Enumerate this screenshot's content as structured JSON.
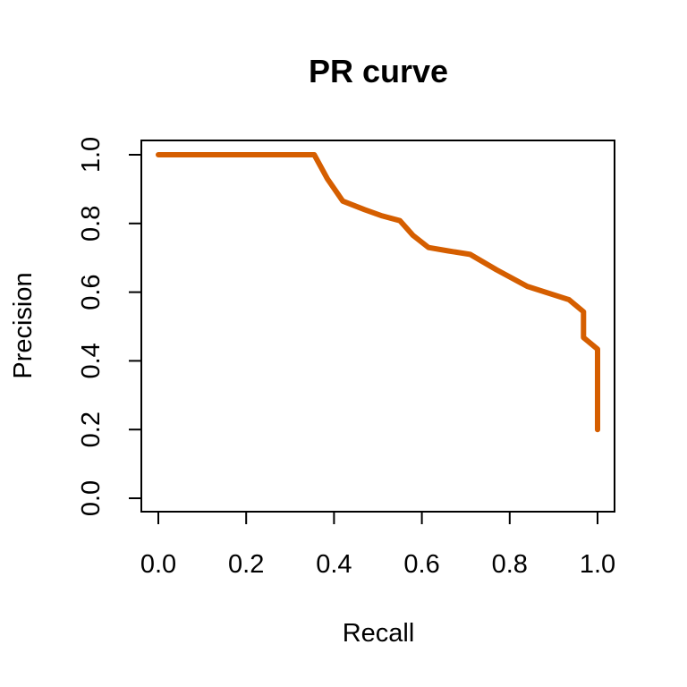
{
  "chart_data": {
    "type": "line",
    "title": "PR curve",
    "xlabel": "Recall",
    "ylabel": "Precision",
    "xlim": [
      0.0,
      1.0
    ],
    "ylim": [
      0.0,
      1.0
    ],
    "x_ticks": [
      "0.0",
      "0.2",
      "0.4",
      "0.6",
      "0.8",
      "1.0"
    ],
    "y_ticks": [
      "0.0",
      "0.2",
      "0.4",
      "0.6",
      "0.8",
      "1.0"
    ],
    "grid": false,
    "series": [
      {
        "color": "#D55E00",
        "x": [
          0.0,
          0.355,
          0.385,
          0.42,
          0.47,
          0.51,
          0.55,
          0.58,
          0.615,
          0.66,
          0.71,
          0.77,
          0.84,
          0.935,
          0.968,
          0.968,
          1.0,
          1.0
        ],
        "y": [
          1.0,
          1.0,
          0.93,
          0.865,
          0.84,
          0.822,
          0.808,
          0.765,
          0.73,
          0.72,
          0.71,
          0.665,
          0.617,
          0.578,
          0.543,
          0.468,
          0.434,
          0.2
        ]
      }
    ]
  }
}
